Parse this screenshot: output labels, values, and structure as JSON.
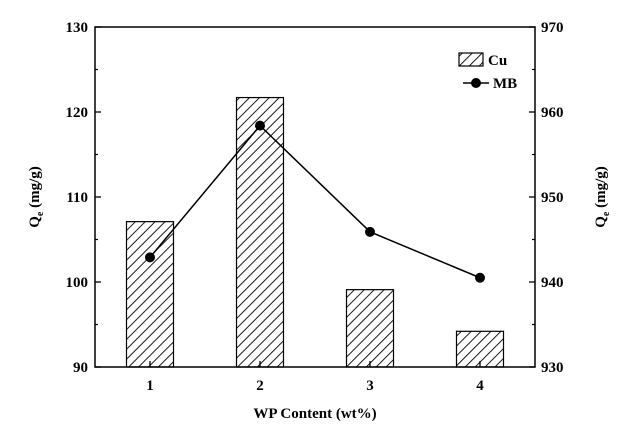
{
  "chart_data": {
    "type": "bar",
    "categories": [
      "1",
      "2",
      "3",
      "4"
    ],
    "xlabel": "WP Content (wt%)",
    "ylabel_left": {
      "main": "Q",
      "sub": "e",
      "unit": " (mg/g)"
    },
    "ylabel_right": {
      "main": "Q",
      "sub": "e",
      "unit": " (mg/g)"
    },
    "ylim_left": [
      90,
      130
    ],
    "ylim_right": [
      930,
      970
    ],
    "yticks_left": [
      90,
      100,
      110,
      120,
      130
    ],
    "yticks_right": [
      930,
      940,
      950,
      960,
      970
    ],
    "series": [
      {
        "name": "Cu",
        "kind": "bar",
        "axis": "left",
        "values": [
          107.1,
          121.7,
          99.1,
          94.2
        ],
        "pattern": "diagonal-hatch"
      },
      {
        "name": "MB",
        "kind": "line",
        "axis": "right",
        "values": [
          942.9,
          958.4,
          945.9,
          940.5
        ],
        "marker": "filled-circle"
      }
    ],
    "legend": {
      "position": "top-right",
      "items": [
        "Cu",
        "MB"
      ]
    },
    "grid": false,
    "colors": {
      "line": "#000000",
      "bar_fill": "#ffffff",
      "hatch": "#000000"
    }
  }
}
